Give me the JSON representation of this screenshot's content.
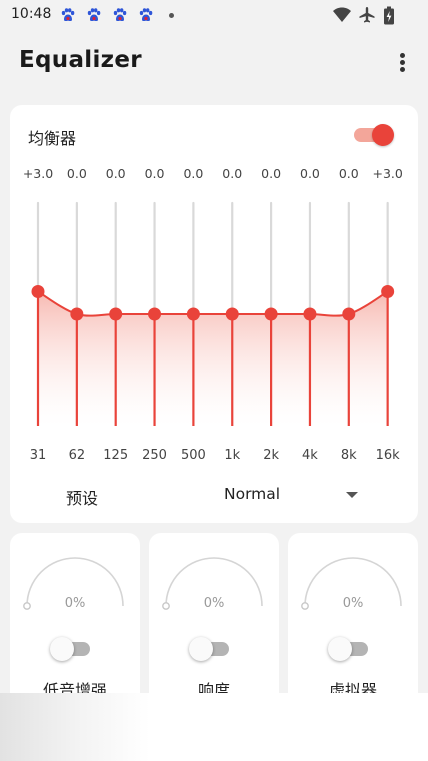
{
  "status_bar": {
    "time": "10:48",
    "app_icons": [
      "paw-icon",
      "paw-icon",
      "paw-icon",
      "paw-icon"
    ],
    "right_icons": [
      "wifi-icon",
      "airplane-mode-icon",
      "battery-charging-icon"
    ]
  },
  "app_bar": {
    "title": "Equalizer",
    "menu_icon": "more-vert-icon"
  },
  "equalizer": {
    "label": "均衡器",
    "enabled": true,
    "accent_color": "#e9433a",
    "range_db": [
      -12,
      12
    ],
    "bands": [
      {
        "freq": "31",
        "gain_label": "+3.0",
        "gain": 3.0
      },
      {
        "freq": "62",
        "gain_label": "0.0",
        "gain": 0.0
      },
      {
        "freq": "125",
        "gain_label": "0.0",
        "gain": 0.0
      },
      {
        "freq": "250",
        "gain_label": "0.0",
        "gain": 0.0
      },
      {
        "freq": "500",
        "gain_label": "0.0",
        "gain": 0.0
      },
      {
        "freq": "1k",
        "gain_label": "0.0",
        "gain": 0.0
      },
      {
        "freq": "2k",
        "gain_label": "0.0",
        "gain": 0.0
      },
      {
        "freq": "4k",
        "gain_label": "0.0",
        "gain": 0.0
      },
      {
        "freq": "8k",
        "gain_label": "0.0",
        "gain": 0.0
      },
      {
        "freq": "16k",
        "gain_label": "+3.0",
        "gain": 3.0
      }
    ],
    "preset": {
      "label": "预设",
      "value": "Normal"
    }
  },
  "effects": [
    {
      "name": "低音增强",
      "percent_label": "0%",
      "level": 0,
      "enabled": false
    },
    {
      "name": "响度",
      "percent_label": "0%",
      "level": 0,
      "enabled": false
    },
    {
      "name": "虚拟器",
      "percent_label": "0%",
      "level": 0,
      "enabled": false
    }
  ]
}
